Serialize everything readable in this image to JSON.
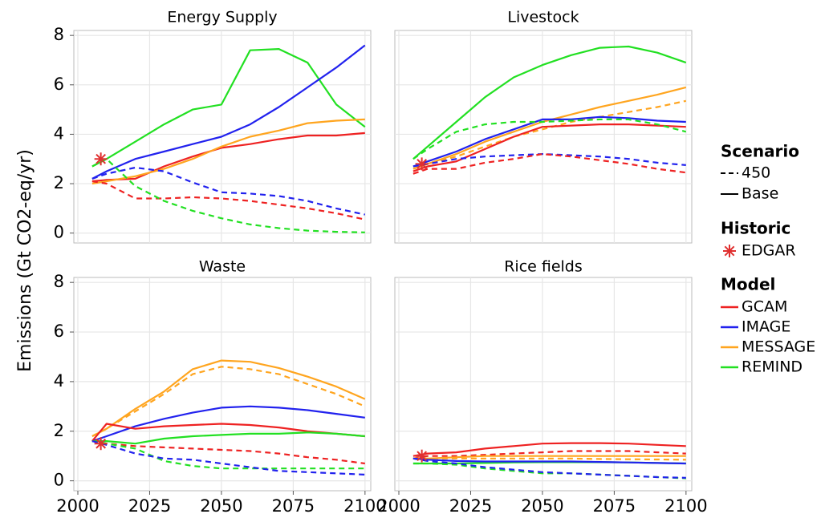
{
  "y_label": "Emissions (Gt CO2-eq/yr)",
  "legend": {
    "scenario": {
      "title": "Scenario",
      "items": [
        {
          "label": "450",
          "dash": true
        },
        {
          "label": "Base",
          "dash": false
        }
      ]
    },
    "historic": {
      "title": "Historic",
      "items": [
        {
          "label": "EDGAR",
          "color": "#e03030"
        }
      ]
    },
    "model": {
      "title": "Model",
      "items": [
        {
          "label": "GCAM",
          "color": "#ee2222"
        },
        {
          "label": "IMAGE",
          "color": "#2222ee"
        },
        {
          "label": "MESSAGE",
          "color": "#ffa51f"
        },
        {
          "label": "REMIND",
          "color": "#22e022"
        }
      ]
    }
  },
  "chart_data": [
    {
      "type": "line",
      "title": "Energy Supply",
      "x": [
        2005,
        2010,
        2020,
        2030,
        2040,
        2050,
        2060,
        2070,
        2080,
        2090,
        2100
      ],
      "xlim": [
        1998.6,
        2102
      ],
      "ylim": [
        -0.4,
        8.2
      ],
      "xticks": [
        2000,
        2025,
        2050,
        2075,
        2100
      ],
      "yticks": [
        0,
        2,
        4,
        6,
        8
      ],
      "grid": true,
      "historic": {
        "x": 2008,
        "y": 3.0
      },
      "series": [
        {
          "model": "REMIND",
          "scenario": "Base",
          "values": [
            2.7,
            3.0,
            3.7,
            4.4,
            5.0,
            5.2,
            7.4,
            7.45,
            6.9,
            5.2,
            4.3
          ]
        },
        {
          "model": "IMAGE",
          "scenario": "Base",
          "values": [
            2.2,
            2.5,
            3.0,
            3.3,
            3.6,
            3.9,
            4.4,
            5.1,
            5.9,
            6.7,
            7.6
          ]
        },
        {
          "model": "GCAM",
          "scenario": "Base",
          "values": [
            2.1,
            2.15,
            2.2,
            2.7,
            3.1,
            3.45,
            3.6,
            3.8,
            3.95,
            3.95,
            4.05
          ]
        },
        {
          "model": "MESSAGE",
          "scenario": "Base",
          "values": [
            2.0,
            2.1,
            2.3,
            2.6,
            3.0,
            3.5,
            3.9,
            4.15,
            4.45,
            4.55,
            4.6
          ]
        },
        {
          "model": "IMAGE",
          "scenario": "450",
          "values": [
            2.2,
            2.4,
            2.65,
            2.5,
            2.05,
            1.65,
            1.6,
            1.5,
            1.3,
            1.0,
            0.75
          ]
        },
        {
          "model": "GCAM",
          "scenario": "450",
          "values": [
            2.1,
            2.0,
            1.4,
            1.4,
            1.45,
            1.4,
            1.3,
            1.15,
            1.0,
            0.8,
            0.55
          ]
        },
        {
          "model": "REMIND",
          "scenario": "450",
          "values": [
            2.7,
            3.0,
            1.9,
            1.3,
            0.9,
            0.6,
            0.35,
            0.2,
            0.1,
            0.05,
            0.03
          ]
        }
      ]
    },
    {
      "type": "line",
      "title": "Livestock",
      "x": [
        2005,
        2010,
        2020,
        2030,
        2040,
        2050,
        2060,
        2070,
        2080,
        2090,
        2100
      ],
      "xlim": [
        1998.6,
        2102
      ],
      "ylim": [
        -0.4,
        8.2
      ],
      "xticks": [
        2000,
        2025,
        2050,
        2075,
        2100
      ],
      "yticks": [
        0,
        2,
        4,
        6,
        8
      ],
      "grid": true,
      "historic": {
        "x": 2008,
        "y": 2.8
      },
      "series": [
        {
          "model": "REMIND",
          "scenario": "Base",
          "values": [
            3.0,
            3.5,
            4.5,
            5.5,
            6.3,
            6.8,
            7.2,
            7.5,
            7.55,
            7.3,
            6.9
          ]
        },
        {
          "model": "MESSAGE",
          "scenario": "Base",
          "values": [
            2.6,
            2.8,
            3.2,
            3.7,
            4.1,
            4.5,
            4.8,
            5.1,
            5.35,
            5.6,
            5.9
          ]
        },
        {
          "model": "MESSAGE",
          "scenario": "450",
          "values": [
            2.6,
            2.8,
            3.1,
            3.5,
            3.9,
            4.2,
            4.5,
            4.7,
            4.9,
            5.1,
            5.35
          ]
        },
        {
          "model": "IMAGE",
          "scenario": "Base",
          "values": [
            2.7,
            2.9,
            3.3,
            3.8,
            4.2,
            4.6,
            4.6,
            4.7,
            4.65,
            4.55,
            4.5
          ]
        },
        {
          "model": "GCAM",
          "scenario": "Base",
          "values": [
            2.5,
            2.7,
            2.9,
            3.4,
            3.9,
            4.3,
            4.35,
            4.4,
            4.4,
            4.35,
            4.3
          ]
        },
        {
          "model": "REMIND",
          "scenario": "450",
          "values": [
            3.0,
            3.4,
            4.1,
            4.4,
            4.5,
            4.5,
            4.55,
            4.6,
            4.6,
            4.4,
            4.1
          ]
        },
        {
          "model": "IMAGE",
          "scenario": "450",
          "values": [
            2.7,
            2.8,
            3.0,
            3.1,
            3.15,
            3.2,
            3.15,
            3.1,
            3.0,
            2.85,
            2.75
          ]
        },
        {
          "model": "GCAM",
          "scenario": "450",
          "values": [
            2.4,
            2.6,
            2.6,
            2.85,
            3.0,
            3.2,
            3.1,
            2.95,
            2.8,
            2.6,
            2.45
          ]
        }
      ]
    },
    {
      "type": "line",
      "title": "Waste",
      "x": [
        2005,
        2010,
        2020,
        2030,
        2040,
        2050,
        2060,
        2070,
        2080,
        2090,
        2100
      ],
      "xlim": [
        1998.6,
        2102
      ],
      "ylim": [
        -0.4,
        8.2
      ],
      "xticks": [
        2000,
        2025,
        2050,
        2075,
        2100
      ],
      "yticks": [
        0,
        2,
        4,
        6,
        8
      ],
      "grid": true,
      "historic": {
        "x": 2008,
        "y": 1.5
      },
      "series": [
        {
          "model": "MESSAGE",
          "scenario": "Base",
          "values": [
            1.8,
            2.1,
            2.9,
            3.6,
            4.5,
            4.85,
            4.8,
            4.55,
            4.2,
            3.8,
            3.3
          ]
        },
        {
          "model": "MESSAGE",
          "scenario": "450",
          "values": [
            1.8,
            2.1,
            2.8,
            3.5,
            4.3,
            4.6,
            4.5,
            4.3,
            3.9,
            3.5,
            3.0
          ]
        },
        {
          "model": "IMAGE",
          "scenario": "Base",
          "values": [
            1.6,
            1.8,
            2.2,
            2.5,
            2.75,
            2.95,
            3.0,
            2.95,
            2.85,
            2.7,
            2.55
          ]
        },
        {
          "model": "GCAM",
          "scenario": "Base",
          "values": [
            1.6,
            2.3,
            2.1,
            2.2,
            2.25,
            2.3,
            2.25,
            2.15,
            2.0,
            1.9,
            1.8
          ]
        },
        {
          "model": "REMIND",
          "scenario": "Base",
          "values": [
            1.6,
            1.6,
            1.5,
            1.7,
            1.8,
            1.85,
            1.9,
            1.9,
            1.95,
            1.9,
            1.8
          ]
        },
        {
          "model": "GCAM",
          "scenario": "450",
          "values": [
            1.6,
            1.5,
            1.4,
            1.35,
            1.3,
            1.25,
            1.2,
            1.1,
            0.95,
            0.85,
            0.7
          ]
        },
        {
          "model": "REMIND",
          "scenario": "450",
          "values": [
            1.6,
            1.5,
            1.3,
            0.8,
            0.6,
            0.5,
            0.5,
            0.5,
            0.5,
            0.5,
            0.5
          ]
        },
        {
          "model": "IMAGE",
          "scenario": "450",
          "values": [
            1.6,
            1.45,
            1.1,
            0.9,
            0.85,
            0.7,
            0.55,
            0.4,
            0.35,
            0.3,
            0.25
          ]
        }
      ]
    },
    {
      "type": "line",
      "title": "Rice fields",
      "x": [
        2005,
        2010,
        2020,
        2030,
        2040,
        2050,
        2060,
        2070,
        2080,
        2090,
        2100
      ],
      "xlim": [
        1998.6,
        2102
      ],
      "ylim": [
        -0.4,
        8.2
      ],
      "xticks": [
        2000,
        2025,
        2050,
        2075,
        2100
      ],
      "yticks": [
        0,
        2,
        4,
        6,
        8
      ],
      "grid": true,
      "historic": {
        "x": 2008,
        "y": 1.0
      },
      "series": [
        {
          "model": "GCAM",
          "scenario": "Base",
          "values": [
            1.0,
            1.1,
            1.15,
            1.3,
            1.4,
            1.5,
            1.52,
            1.52,
            1.5,
            1.45,
            1.4
          ]
        },
        {
          "model": "GCAM",
          "scenario": "450",
          "values": [
            0.9,
            1.0,
            1.0,
            1.05,
            1.1,
            1.15,
            1.2,
            1.2,
            1.2,
            1.15,
            1.1
          ]
        },
        {
          "model": "MESSAGE",
          "scenario": "Base",
          "values": [
            0.9,
            0.9,
            0.95,
            1.0,
            1.0,
            1.0,
            1.0,
            1.0,
            1.0,
            1.0,
            1.0
          ]
        },
        {
          "model": "MESSAGE",
          "scenario": "450",
          "values": [
            0.9,
            0.9,
            0.9,
            0.9,
            0.9,
            0.9,
            0.9,
            0.88,
            0.87,
            0.86,
            0.85
          ]
        },
        {
          "model": "REMIND",
          "scenario": "Base",
          "values": [
            0.7,
            0.7,
            0.7,
            0.72,
            0.74,
            0.75,
            0.75,
            0.75,
            0.74,
            0.72,
            0.7
          ]
        },
        {
          "model": "IMAGE",
          "scenario": "Base",
          "values": [
            0.9,
            0.85,
            0.8,
            0.78,
            0.78,
            0.78,
            0.78,
            0.76,
            0.74,
            0.72,
            0.7
          ]
        },
        {
          "model": "REMIND",
          "scenario": "450",
          "values": [
            0.7,
            0.7,
            0.65,
            0.5,
            0.4,
            0.3,
            0.3,
            0.25,
            0.2,
            0.15,
            0.1
          ]
        },
        {
          "model": "IMAGE",
          "scenario": "450",
          "values": [
            0.9,
            0.8,
            0.7,
            0.55,
            0.45,
            0.35,
            0.3,
            0.25,
            0.2,
            0.15,
            0.12
          ]
        }
      ]
    }
  ]
}
